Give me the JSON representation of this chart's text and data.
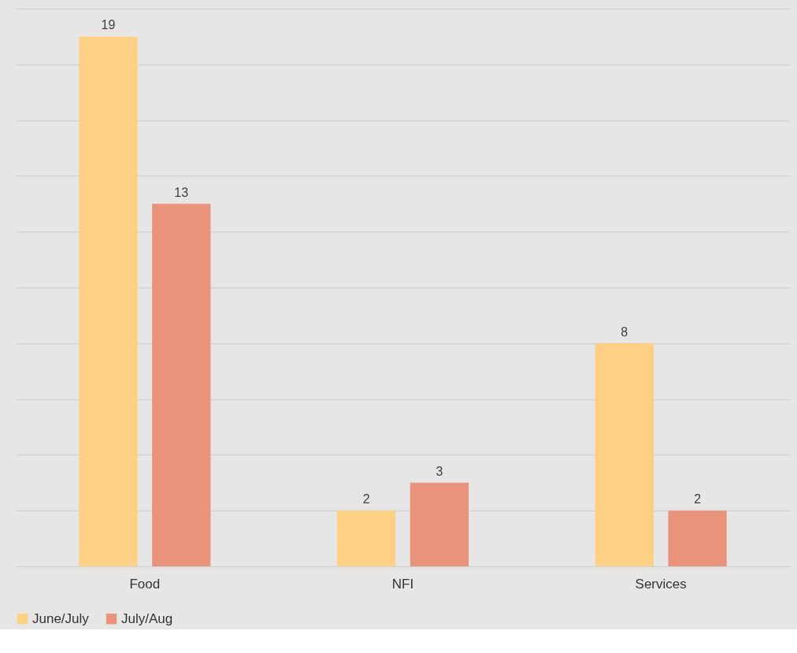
{
  "chart_data": {
    "type": "bar",
    "categories": [
      "Food",
      "NFI",
      "Services"
    ],
    "series": [
      {
        "name": "June/July",
        "color": "#fdd083",
        "values": [
          19,
          2,
          8
        ]
      },
      {
        "name": "July/Aug",
        "color": "#e8937a",
        "values": [
          13,
          3,
          2
        ]
      }
    ],
    "ylim": [
      0,
      20
    ],
    "yticks": [
      {
        "value": 0,
        "label": null
      },
      {
        "value": 2,
        "label": null
      },
      {
        "value": 4,
        "label": null
      },
      {
        "value": 6,
        "label": null
      },
      {
        "value": 8,
        "label": null
      },
      {
        "value": 10,
        "label": null
      },
      {
        "value": 12,
        "label": null
      },
      {
        "value": 14,
        "label": null
      },
      {
        "value": 16,
        "label": null
      },
      {
        "value": 18,
        "label": null
      },
      {
        "value": 20,
        "label": null
      }
    ],
    "grid": "y",
    "tick_labels": "x",
    "data_labels": true,
    "legend": "bottom"
  }
}
